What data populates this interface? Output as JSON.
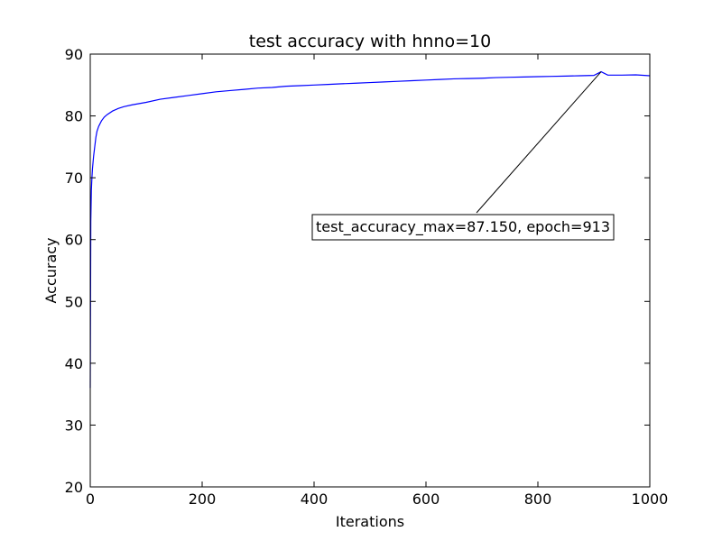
{
  "chart_data": {
    "type": "line",
    "title": "test accuracy with hnno=10",
    "xlabel": "Iterations",
    "ylabel": "Accuracy",
    "xlim": [
      0,
      1000
    ],
    "ylim": [
      20,
      90
    ],
    "xticks": [
      "0",
      "200",
      "400",
      "600",
      "800",
      "1000"
    ],
    "yticks": [
      "20",
      "30",
      "40",
      "50",
      "60",
      "70",
      "80",
      "90"
    ],
    "grid": false,
    "legend": "none",
    "line_color": "#0000ff",
    "annotation": {
      "text": "test_accuracy_max=87.150, epoch=913",
      "point": [
        913,
        87.15
      ]
    },
    "series": [
      {
        "x": [
          0,
          1,
          2,
          3,
          4,
          5,
          6,
          8,
          10,
          12,
          15,
          20,
          25,
          30,
          40,
          50,
          60,
          75,
          100,
          125,
          150,
          175,
          200,
          225,
          250,
          275,
          300,
          325,
          350,
          375,
          400,
          425,
          450,
          475,
          500,
          525,
          550,
          575,
          600,
          625,
          650,
          675,
          700,
          725,
          750,
          775,
          800,
          825,
          850,
          875,
          900,
          913,
          925,
          950,
          975,
          1000
        ],
        "values": [
          36,
          63,
          68,
          70,
          71.5,
          72.5,
          73.5,
          75,
          76.5,
          77.5,
          78.3,
          79.2,
          79.8,
          80.2,
          80.8,
          81.2,
          81.5,
          81.8,
          82.2,
          82.7,
          83.0,
          83.3,
          83.6,
          83.9,
          84.1,
          84.3,
          84.5,
          84.6,
          84.8,
          84.9,
          85.0,
          85.1,
          85.2,
          85.3,
          85.4,
          85.5,
          85.6,
          85.7,
          85.8,
          85.9,
          86.0,
          86.05,
          86.1,
          86.2,
          86.25,
          86.3,
          86.35,
          86.4,
          86.45,
          86.5,
          86.55,
          87.15,
          86.6,
          86.6,
          86.65,
          86.5
        ]
      }
    ]
  }
}
